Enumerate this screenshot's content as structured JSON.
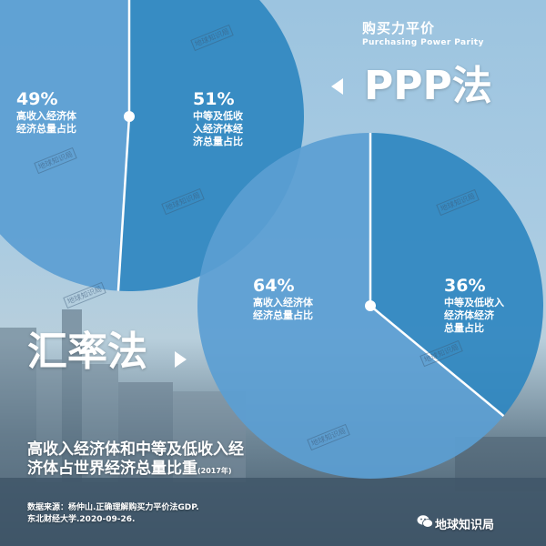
{
  "ppp": {
    "title_cn": "购买力平价",
    "title_en": "Purchasing Power Parity",
    "method_label": "PPP法"
  },
  "fx": {
    "method_label": "汇率法"
  },
  "colors": {
    "slice_high": "#5b9ed3",
    "slice_low": "#2f87c0",
    "center_dot": "#ffffff"
  },
  "chart_data": [
    {
      "type": "pie",
      "method": "PPP法",
      "slices": [
        {
          "pct_text": "49%",
          "label": "高收入经济体经济总量占比",
          "label_lines": [
            "高收入经济体",
            "经济总量占比"
          ],
          "value": 49
        },
        {
          "pct_text": "51%",
          "label": "中等及低收入经济体经济总量占比",
          "label_lines": [
            "中等及低收",
            "入经济体经",
            "济总量占比"
          ],
          "value": 51
        }
      ]
    },
    {
      "type": "pie",
      "method": "汇率法",
      "slices": [
        {
          "pct_text": "64%",
          "label": "高收入经济体经济总量占比",
          "label_lines": [
            "高收入经济体",
            "经济总量占比"
          ],
          "value": 64
        },
        {
          "pct_text": "36%",
          "label": "中等及低收入经济体经济总量占比",
          "label_lines": [
            "中等及低收入",
            "经济体经济",
            "总量占比"
          ],
          "value": 36
        }
      ]
    }
  ],
  "footer": {
    "title": "高收入经济体和中等及低收入经济体占世界经济总量比重",
    "year": "(2017年)",
    "source_line1": "数据来源：杨仲山.正确理解购买力平价法GDP.",
    "source_line2": "东北财经大学.2020-09-26."
  },
  "brand": {
    "name": "地球知识局",
    "icon": "wechat-icon"
  },
  "watermark": "地球知识局"
}
